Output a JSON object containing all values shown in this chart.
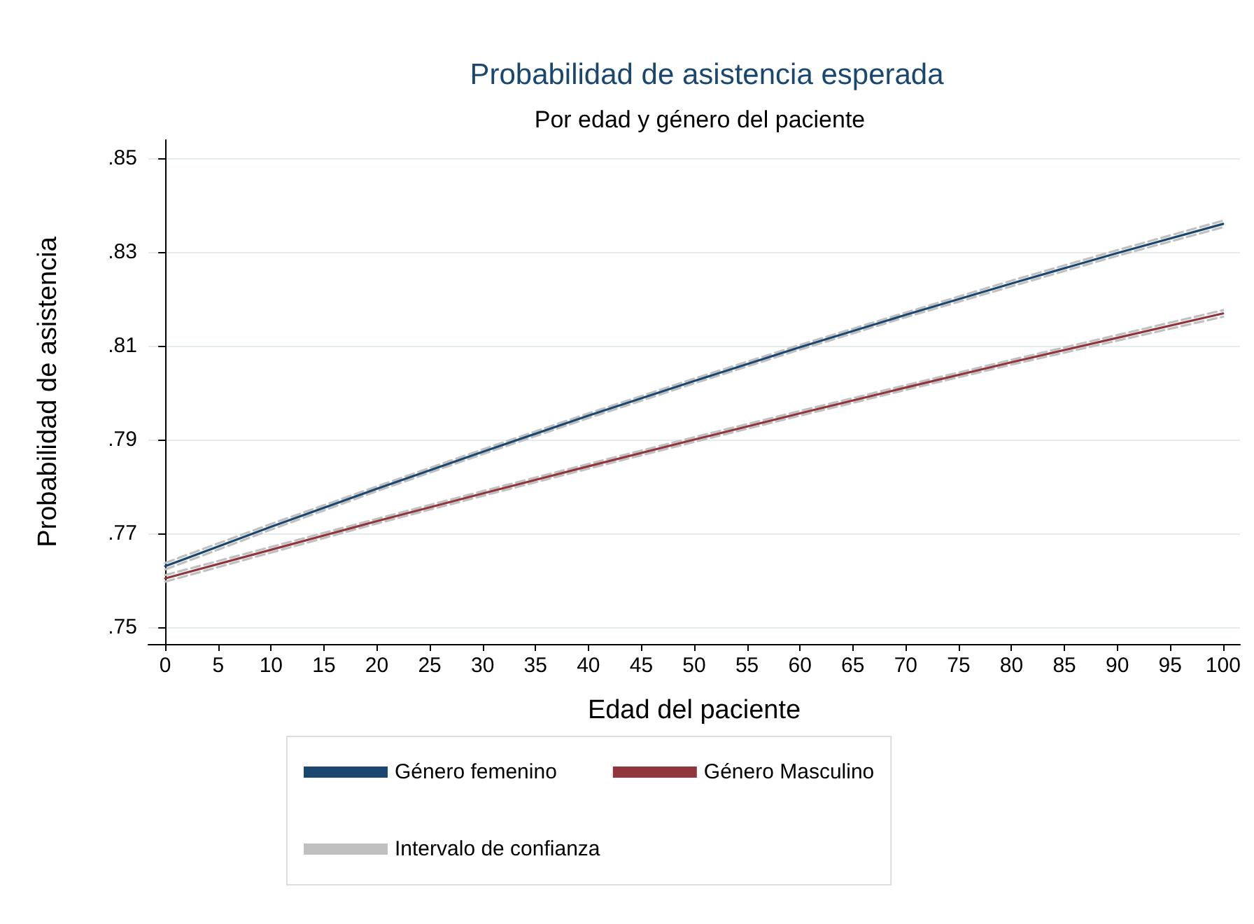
{
  "chart_data": {
    "type": "line",
    "title": "Probabilidad de asistencia esperada",
    "subtitle": "Por edad y género del paciente",
    "xlabel": "Edad del paciente",
    "ylabel": "Probabilidad de asistencia",
    "x": [
      0,
      10,
      20,
      30,
      40,
      50,
      60,
      70,
      80,
      90,
      100
    ],
    "series": [
      {
        "name": "Género femenino",
        "color": "#1a476f",
        "line_style": "solid",
        "values": [
          0.763,
          0.7714,
          0.7795,
          0.7874,
          0.7951,
          0.8025,
          0.8097,
          0.8166,
          0.8233,
          0.8298,
          0.836
        ]
      },
      {
        "name": "Género Masculino",
        "color": "#90353b",
        "line_style": "solid",
        "values": [
          0.7604,
          0.7665,
          0.7726,
          0.7785,
          0.7843,
          0.79,
          0.7956,
          0.8011,
          0.8065,
          0.8117,
          0.8169
        ]
      },
      {
        "name": "Intervalo de confianza",
        "color": "#c0c0c0",
        "line_style": "dashed",
        "values": [
          0.7637,
          0.772,
          0.78,
          0.7879,
          0.7956,
          0.803,
          0.8102,
          0.8171,
          0.8239,
          0.8304,
          0.8367
        ]
      },
      {
        "color": "#c0c0c0",
        "line_style": "dashed",
        "values": [
          0.7623,
          0.7708,
          0.779,
          0.7869,
          0.7946,
          0.802,
          0.8092,
          0.8161,
          0.8227,
          0.8292,
          0.8353
        ]
      },
      {
        "color": "#c0c0c0",
        "line_style": "dashed",
        "values": [
          0.7611,
          0.7671,
          0.7731,
          0.779,
          0.7848,
          0.7905,
          0.7961,
          0.8016,
          0.807,
          0.8123,
          0.8176
        ]
      },
      {
        "color": "#c0c0c0",
        "line_style": "dashed",
        "values": [
          0.7597,
          0.7659,
          0.7721,
          0.778,
          0.7838,
          0.7895,
          0.7951,
          0.8006,
          0.806,
          0.8111,
          0.8162
        ]
      }
    ],
    "xlim": [
      -1.6,
      101.6
    ],
    "xticks": [
      0,
      5,
      10,
      15,
      20,
      25,
      30,
      35,
      40,
      45,
      50,
      55,
      60,
      65,
      70,
      75,
      80,
      85,
      90,
      95,
      100
    ],
    "ylim": [
      0.7464,
      0.8539
    ],
    "yticks": [
      {
        "value": 0.75,
        "label": ".75"
      },
      {
        "value": 0.77,
        "label": ".77"
      },
      {
        "value": 0.79,
        "label": ".79"
      },
      {
        "value": 0.81,
        "label": ".81"
      },
      {
        "value": 0.83,
        "label": ".83"
      },
      {
        "value": 0.85,
        "label": ".85"
      }
    ],
    "grid": "y",
    "legend": "bottom",
    "marker": "none"
  }
}
